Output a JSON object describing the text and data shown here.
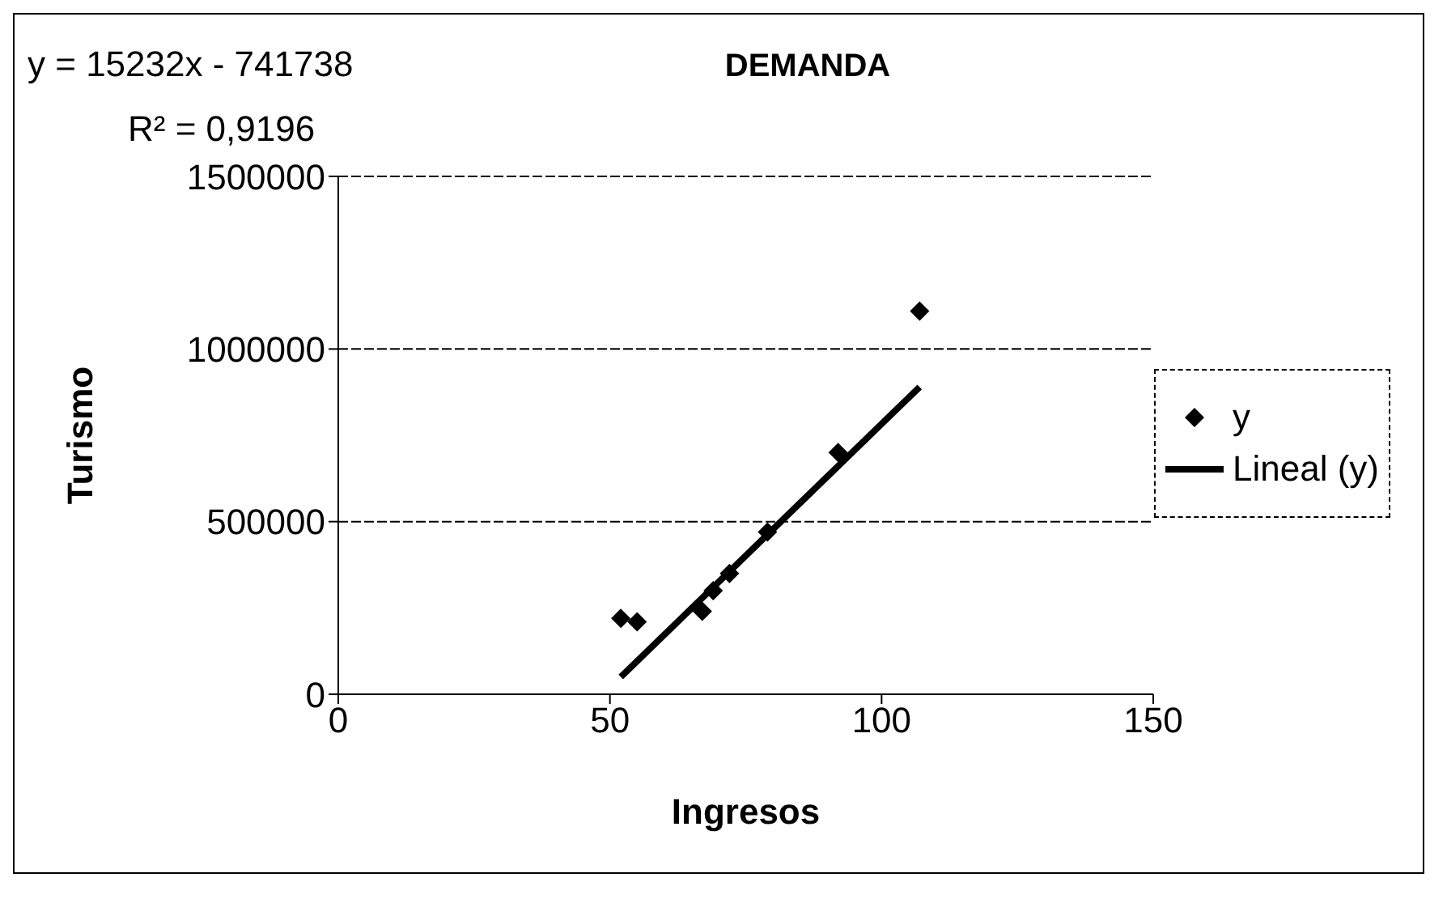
{
  "chart_data": {
    "type": "scatter",
    "title": "DEMANDA",
    "xlabel": "Ingresos",
    "ylabel": "Turismo",
    "annotations": [
      "y = 15232x - 741738",
      "R² = 0,9196"
    ],
    "xlim": [
      0,
      150
    ],
    "xticks": [
      0,
      50,
      100,
      150
    ],
    "ylim": [
      0,
      1500000
    ],
    "yticks": [
      0,
      500000,
      1000000,
      1500000
    ],
    "grid": "y",
    "legend": "right",
    "series": [
      {
        "name": "y",
        "marker": "diamond",
        "color": "#000000",
        "x": [
          52,
          55,
          67,
          69,
          72,
          79,
          92,
          107
        ],
        "values": [
          220000,
          210000,
          240000,
          300000,
          350000,
          470000,
          700000,
          1110000
        ]
      },
      {
        "name": "Lineal (y)",
        "type": "line",
        "color": "#000000",
        "line_style": "solid",
        "x": [
          52,
          107
        ],
        "values": [
          50000,
          890000
        ]
      }
    ]
  }
}
